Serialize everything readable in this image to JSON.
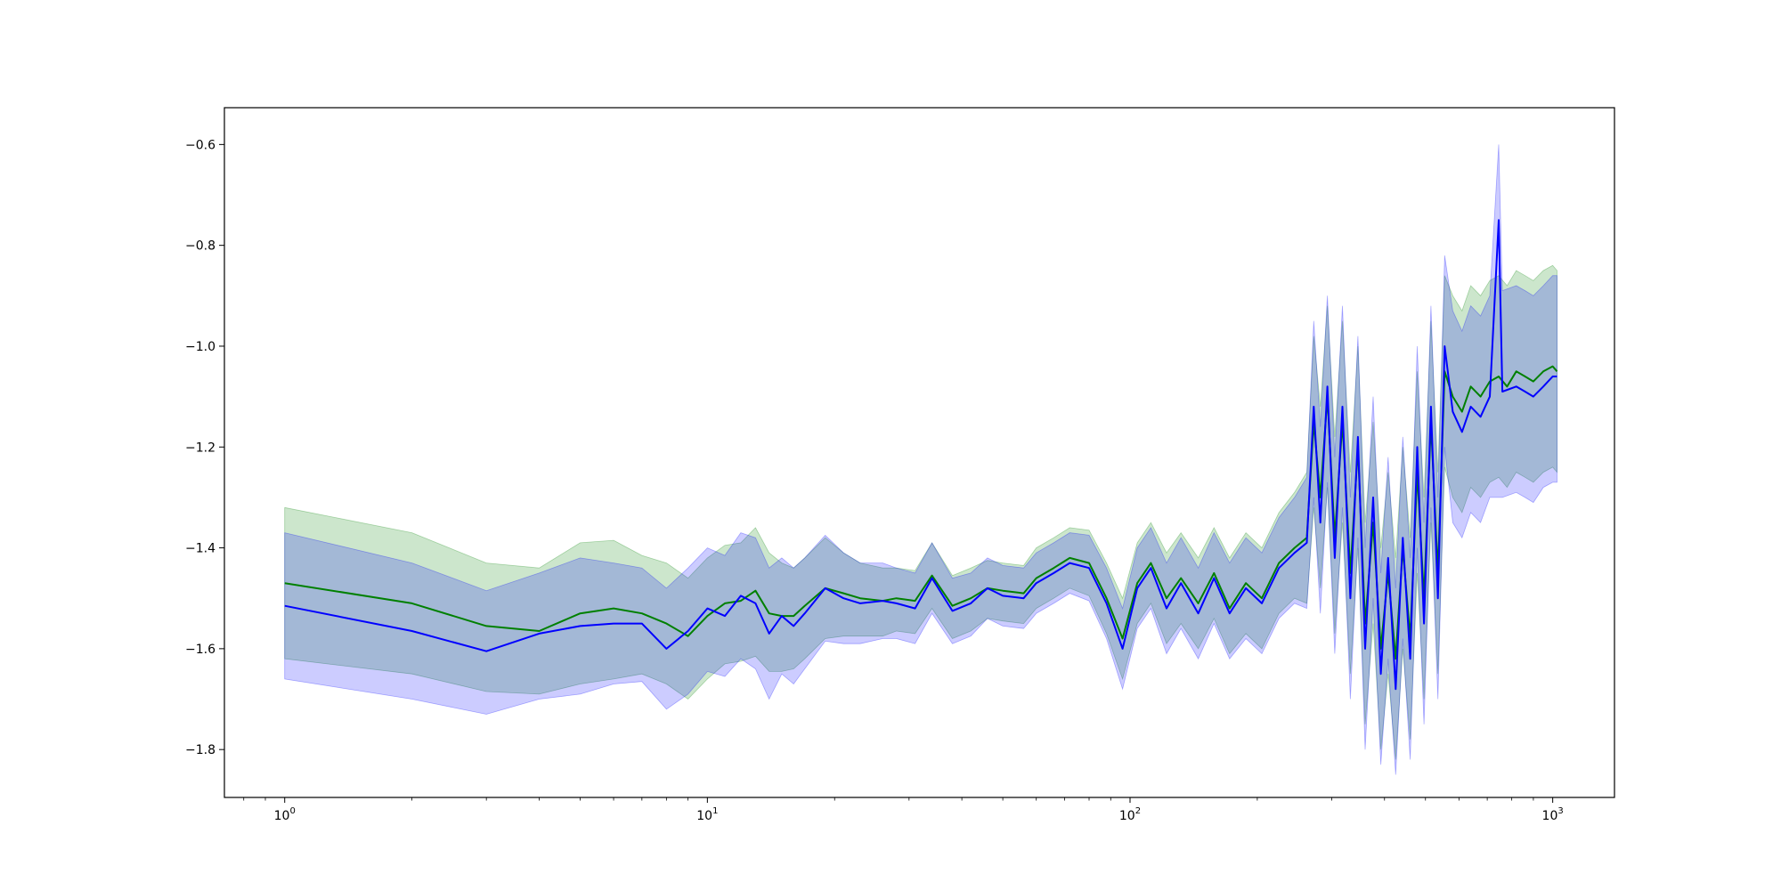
{
  "chart_data": {
    "type": "line",
    "title": "",
    "xlabel": "",
    "ylabel": "",
    "x_scale": "log",
    "xlim": [
      0.72,
      1400
    ],
    "ylim": [
      -1.895,
      -0.527
    ],
    "grid": false,
    "x_ticks": [
      {
        "base": "10",
        "exp": "0",
        "value": 1
      },
      {
        "base": "10",
        "exp": "1",
        "value": 10
      },
      {
        "base": "10",
        "exp": "2",
        "value": 100
      },
      {
        "base": "10",
        "exp": "3",
        "value": 1000
      }
    ],
    "y_ticks": [
      {
        "label": "−0.6",
        "value": -0.6
      },
      {
        "label": "−0.8",
        "value": -0.8
      },
      {
        "label": "−1.0",
        "value": -1.0
      },
      {
        "label": "−1.2",
        "value": -1.2
      },
      {
        "label": "−1.4",
        "value": -1.4
      },
      {
        "label": "−1.6",
        "value": -1.6
      },
      {
        "label": "−1.8",
        "value": -1.8
      }
    ],
    "colors": {
      "green_line": "#008000",
      "blue_line": "#0000ff",
      "green_band": "#008000",
      "blue_band": "#0000ff"
    },
    "band_opacity": 0.2,
    "series": [
      {
        "color": "green",
        "points": [
          [
            1,
            -1.47,
            -1.32,
            -1.62
          ],
          [
            2,
            -1.51,
            -1.37,
            -1.65
          ],
          [
            3,
            -1.555,
            -1.43,
            -1.685
          ],
          [
            4,
            -1.565,
            -1.44,
            -1.69
          ],
          [
            5,
            -1.53,
            -1.39,
            -1.67
          ],
          [
            6,
            -1.52,
            -1.385,
            -1.66
          ],
          [
            7,
            -1.53,
            -1.415,
            -1.65
          ],
          [
            8,
            -1.55,
            -1.43,
            -1.67
          ],
          [
            9,
            -1.575,
            -1.46,
            -1.7
          ],
          [
            10,
            -1.535,
            -1.42,
            -1.66
          ],
          [
            11,
            -1.51,
            -1.395,
            -1.63
          ],
          [
            12,
            -1.505,
            -1.39,
            -1.625
          ],
          [
            13,
            -1.485,
            -1.36,
            -1.615
          ],
          [
            14,
            -1.53,
            -1.41,
            -1.645
          ],
          [
            15,
            -1.535,
            -1.43,
            -1.645
          ],
          [
            16,
            -1.535,
            -1.44,
            -1.64
          ],
          [
            17,
            -1.515,
            -1.42,
            -1.62
          ],
          [
            19,
            -1.48,
            -1.38,
            -1.58
          ],
          [
            21,
            -1.49,
            -1.41,
            -1.575
          ],
          [
            23,
            -1.5,
            -1.43,
            -1.575
          ],
          [
            26,
            -1.505,
            -1.44,
            -1.575
          ],
          [
            28,
            -1.5,
            -1.44,
            -1.565
          ],
          [
            31,
            -1.505,
            -1.445,
            -1.57
          ],
          [
            34,
            -1.455,
            -1.39,
            -1.52
          ],
          [
            38,
            -1.515,
            -1.455,
            -1.58
          ],
          [
            42,
            -1.5,
            -1.44,
            -1.565
          ],
          [
            46,
            -1.48,
            -1.425,
            -1.54
          ],
          [
            50,
            -1.485,
            -1.43,
            -1.545
          ],
          [
            56,
            -1.49,
            -1.435,
            -1.55
          ],
          [
            60,
            -1.46,
            -1.4,
            -1.52
          ],
          [
            66,
            -1.44,
            -1.38,
            -1.5
          ],
          [
            72,
            -1.42,
            -1.36,
            -1.48
          ],
          [
            80,
            -1.43,
            -1.365,
            -1.495
          ],
          [
            88,
            -1.5,
            -1.43,
            -1.57
          ],
          [
            96,
            -1.58,
            -1.5,
            -1.66
          ],
          [
            104,
            -1.47,
            -1.39,
            -1.55
          ],
          [
            112,
            -1.43,
            -1.35,
            -1.51
          ],
          [
            122,
            -1.5,
            -1.41,
            -1.59
          ],
          [
            132,
            -1.46,
            -1.37,
            -1.55
          ],
          [
            145,
            -1.51,
            -1.42,
            -1.6
          ],
          [
            158,
            -1.45,
            -1.36,
            -1.54
          ],
          [
            172,
            -1.52,
            -1.42,
            -1.61
          ],
          [
            188,
            -1.47,
            -1.37,
            -1.57
          ],
          [
            205,
            -1.5,
            -1.4,
            -1.6
          ],
          [
            225,
            -1.43,
            -1.33,
            -1.53
          ],
          [
            245,
            -1.4,
            -1.29,
            -1.5
          ],
          [
            262,
            -1.38,
            -1.25,
            -1.51
          ],
          [
            272,
            -1.15,
            -0.98,
            -1.32
          ],
          [
            282,
            -1.3,
            -1.12,
            -1.48
          ],
          [
            293,
            -1.1,
            -0.92,
            -1.28
          ],
          [
            305,
            -1.38,
            -1.18,
            -1.57
          ],
          [
            318,
            -1.15,
            -0.95,
            -1.35
          ],
          [
            332,
            -1.45,
            -1.25,
            -1.65
          ],
          [
            346,
            -1.2,
            -1.0,
            -1.4
          ],
          [
            360,
            -1.55,
            -1.35,
            -1.75
          ],
          [
            376,
            -1.35,
            -1.15,
            -1.55
          ],
          [
            392,
            -1.6,
            -1.4,
            -1.8
          ],
          [
            408,
            -1.45,
            -1.25,
            -1.65
          ],
          [
            425,
            -1.62,
            -1.42,
            -1.82
          ],
          [
            442,
            -1.4,
            -1.2,
            -1.6
          ],
          [
            460,
            -1.58,
            -1.38,
            -1.78
          ],
          [
            478,
            -1.25,
            -1.05,
            -1.45
          ],
          [
            496,
            -1.5,
            -1.3,
            -1.7
          ],
          [
            515,
            -1.15,
            -0.95,
            -1.35
          ],
          [
            535,
            -1.45,
            -1.25,
            -1.65
          ],
          [
            555,
            -1.05,
            -0.86,
            -1.24
          ],
          [
            580,
            -1.1,
            -0.9,
            -1.3
          ],
          [
            610,
            -1.13,
            -0.93,
            -1.33
          ],
          [
            640,
            -1.08,
            -0.88,
            -1.28
          ],
          [
            675,
            -1.1,
            -0.9,
            -1.3
          ],
          [
            710,
            -1.07,
            -0.87,
            -1.27
          ],
          [
            745,
            -1.06,
            -0.86,
            -1.26
          ],
          [
            780,
            -1.08,
            -0.88,
            -1.28
          ],
          [
            820,
            -1.05,
            -0.85,
            -1.25
          ],
          [
            860,
            -1.06,
            -0.86,
            -1.26
          ],
          [
            900,
            -1.07,
            -0.87,
            -1.27
          ],
          [
            950,
            -1.05,
            -0.85,
            -1.25
          ],
          [
            1000,
            -1.04,
            -0.84,
            -1.24
          ],
          [
            1024,
            -1.05,
            -0.85,
            -1.25
          ]
        ]
      },
      {
        "color": "blue",
        "points": [
          [
            1,
            -1.515,
            -1.37,
            -1.66
          ],
          [
            2,
            -1.565,
            -1.43,
            -1.7
          ],
          [
            3,
            -1.605,
            -1.485,
            -1.73
          ],
          [
            4,
            -1.57,
            -1.45,
            -1.7
          ],
          [
            5,
            -1.555,
            -1.42,
            -1.69
          ],
          [
            6,
            -1.55,
            -1.43,
            -1.67
          ],
          [
            7,
            -1.55,
            -1.44,
            -1.665
          ],
          [
            8,
            -1.6,
            -1.48,
            -1.72
          ],
          [
            9,
            -1.565,
            -1.44,
            -1.69
          ],
          [
            10,
            -1.52,
            -1.4,
            -1.645
          ],
          [
            11,
            -1.535,
            -1.415,
            -1.655
          ],
          [
            12,
            -1.495,
            -1.37,
            -1.62
          ],
          [
            13,
            -1.51,
            -1.38,
            -1.64
          ],
          [
            14,
            -1.57,
            -1.44,
            -1.7
          ],
          [
            15,
            -1.535,
            -1.42,
            -1.65
          ],
          [
            16,
            -1.555,
            -1.44,
            -1.67
          ],
          [
            17,
            -1.53,
            -1.42,
            -1.64
          ],
          [
            19,
            -1.48,
            -1.375,
            -1.585
          ],
          [
            21,
            -1.5,
            -1.41,
            -1.59
          ],
          [
            23,
            -1.51,
            -1.43,
            -1.59
          ],
          [
            26,
            -1.505,
            -1.43,
            -1.58
          ],
          [
            28,
            -1.51,
            -1.44,
            -1.58
          ],
          [
            31,
            -1.52,
            -1.45,
            -1.59
          ],
          [
            34,
            -1.46,
            -1.39,
            -1.53
          ],
          [
            38,
            -1.525,
            -1.46,
            -1.59
          ],
          [
            42,
            -1.51,
            -1.45,
            -1.575
          ],
          [
            46,
            -1.48,
            -1.42,
            -1.54
          ],
          [
            50,
            -1.495,
            -1.435,
            -1.555
          ],
          [
            56,
            -1.5,
            -1.44,
            -1.56
          ],
          [
            60,
            -1.47,
            -1.41,
            -1.53
          ],
          [
            66,
            -1.45,
            -1.39,
            -1.51
          ],
          [
            72,
            -1.43,
            -1.37,
            -1.49
          ],
          [
            80,
            -1.44,
            -1.375,
            -1.505
          ],
          [
            88,
            -1.51,
            -1.44,
            -1.58
          ],
          [
            96,
            -1.6,
            -1.52,
            -1.68
          ],
          [
            104,
            -1.48,
            -1.4,
            -1.56
          ],
          [
            112,
            -1.44,
            -1.36,
            -1.52
          ],
          [
            122,
            -1.52,
            -1.43,
            -1.61
          ],
          [
            132,
            -1.47,
            -1.38,
            -1.56
          ],
          [
            145,
            -1.53,
            -1.44,
            -1.62
          ],
          [
            158,
            -1.46,
            -1.37,
            -1.55
          ],
          [
            172,
            -1.53,
            -1.43,
            -1.62
          ],
          [
            188,
            -1.48,
            -1.38,
            -1.58
          ],
          [
            205,
            -1.51,
            -1.41,
            -1.61
          ],
          [
            225,
            -1.44,
            -1.34,
            -1.54
          ],
          [
            245,
            -1.41,
            -1.3,
            -1.51
          ],
          [
            262,
            -1.39,
            -1.26,
            -1.52
          ],
          [
            272,
            -1.12,
            -0.95,
            -1.3
          ],
          [
            282,
            -1.35,
            -1.16,
            -1.53
          ],
          [
            293,
            -1.08,
            -0.9,
            -1.27
          ],
          [
            305,
            -1.42,
            -1.22,
            -1.61
          ],
          [
            318,
            -1.12,
            -0.92,
            -1.32
          ],
          [
            332,
            -1.5,
            -1.3,
            -1.7
          ],
          [
            346,
            -1.18,
            -0.98,
            -1.38
          ],
          [
            360,
            -1.6,
            -1.4,
            -1.8
          ],
          [
            376,
            -1.3,
            -1.1,
            -1.5
          ],
          [
            392,
            -1.65,
            -1.45,
            -1.83
          ],
          [
            408,
            -1.42,
            -1.22,
            -1.62
          ],
          [
            425,
            -1.68,
            -1.48,
            -1.85
          ],
          [
            442,
            -1.38,
            -1.18,
            -1.58
          ],
          [
            460,
            -1.62,
            -1.42,
            -1.82
          ],
          [
            478,
            -1.2,
            -1.0,
            -1.4
          ],
          [
            496,
            -1.55,
            -1.35,
            -1.75
          ],
          [
            515,
            -1.12,
            -0.92,
            -1.32
          ],
          [
            535,
            -1.5,
            -1.3,
            -1.7
          ],
          [
            555,
            -1.0,
            -0.82,
            -1.2
          ],
          [
            580,
            -1.13,
            -0.93,
            -1.35
          ],
          [
            610,
            -1.17,
            -0.97,
            -1.38
          ],
          [
            640,
            -1.12,
            -0.92,
            -1.33
          ],
          [
            675,
            -1.14,
            -0.94,
            -1.35
          ],
          [
            710,
            -1.1,
            -0.9,
            -1.3
          ],
          [
            745,
            -0.75,
            -0.6,
            -1.3
          ],
          [
            760,
            -1.09,
            -0.89,
            -1.3
          ],
          [
            820,
            -1.08,
            -0.88,
            -1.29
          ],
          [
            860,
            -1.09,
            -0.89,
            -1.3
          ],
          [
            900,
            -1.1,
            -0.9,
            -1.31
          ],
          [
            950,
            -1.08,
            -0.88,
            -1.28
          ],
          [
            1000,
            -1.06,
            -0.86,
            -1.27
          ],
          [
            1024,
            -1.06,
            -0.86,
            -1.27
          ]
        ]
      }
    ]
  }
}
